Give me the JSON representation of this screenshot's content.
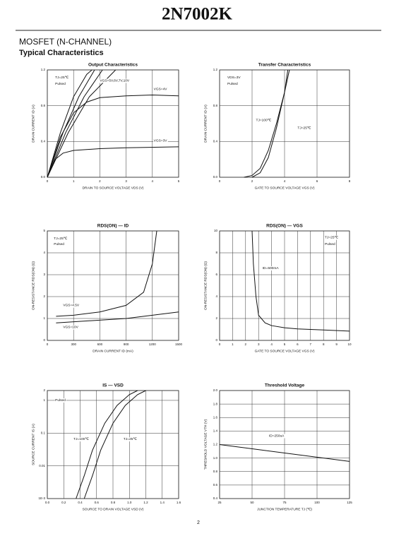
{
  "header": {
    "title": "2N7002K",
    "section": "MOSFET (N-CHANNEL)",
    "subtitle": "Typical Characteristics"
  },
  "page_number": "2",
  "chart_data": [
    {
      "type": "line",
      "title": "Output Characteristics",
      "xlabel": "DRAIN TO SOURCE VOLTAGE  VDS  (V)",
      "ylabel": "DRAIN CURRENT  ID  (A)",
      "xlim": [
        0,
        5
      ],
      "xticks": [
        0,
        1,
        2,
        3,
        4,
        5
      ],
      "ylim": [
        0,
        1.2
      ],
      "yticks": [
        {
          "value": 0,
          "label": "0.0"
        },
        0.4,
        0.8,
        1.2
      ],
      "grid": true,
      "ylog": false,
      "annotations": [
        "TJ=25℃",
        "Pulsed",
        "VGS=5V,6V,7V,10V",
        "VGS=4V",
        "VGS=3V"
      ],
      "series": [
        {
          "name": "VGS=10V",
          "color": "#111111",
          "x": [
            0,
            0.5,
            1,
            1.5,
            1.7
          ],
          "values": [
            0,
            0.5,
            0.9,
            1.15,
            1.2
          ]
        },
        {
          "name": "VGS=7V",
          "color": "#111111",
          "x": [
            0,
            0.6,
            1.2,
            1.8
          ],
          "values": [
            0,
            0.5,
            0.9,
            1.2
          ]
        },
        {
          "name": "VGS=6V",
          "color": "#111111",
          "x": [
            0,
            0.7,
            1.4,
            2.1
          ],
          "values": [
            0,
            0.5,
            0.9,
            1.2
          ]
        },
        {
          "name": "VGS=5V",
          "color": "#111111",
          "x": [
            0,
            0.8,
            1.6,
            2.6
          ],
          "values": [
            0,
            0.5,
            0.9,
            1.2
          ]
        },
        {
          "name": "VGS=4V",
          "color": "#111111",
          "x": [
            0,
            0.5,
            1,
            1.5,
            2,
            3,
            4,
            5
          ],
          "values": [
            0,
            0.45,
            0.72,
            0.84,
            0.89,
            0.91,
            0.92,
            0.91
          ]
        },
        {
          "name": "VGS=3V",
          "color": "#111111",
          "x": [
            0,
            0.3,
            0.6,
            1,
            2,
            3,
            5
          ],
          "values": [
            0,
            0.2,
            0.27,
            0.3,
            0.32,
            0.33,
            0.34
          ]
        }
      ]
    },
    {
      "type": "line",
      "title": "Transfer Characteristics",
      "xlabel": "GATE TO SOURCE VOLTAGE  VGS  (V)",
      "ylabel": "DRAIN CURRENT  ID  (A)",
      "xlim": [
        0,
        8
      ],
      "xticks": [
        0,
        2,
        4,
        6,
        8
      ],
      "ylim": [
        0,
        1.2
      ],
      "yticks": [
        {
          "value": 0,
          "label": "0.0"
        },
        0.4,
        0.8,
        1.2
      ],
      "grid": true,
      "ylog": false,
      "annotations": [
        "VDS=3V",
        "Pulsed",
        "TJ=100℃",
        "TJ=25℃"
      ],
      "series": [
        {
          "name": "TJ=100℃",
          "color": "#111111",
          "x": [
            1.5,
            2,
            2.5,
            3,
            3.5,
            4,
            4.3
          ],
          "values": [
            0,
            0.02,
            0.1,
            0.3,
            0.6,
            0.95,
            1.2
          ]
        },
        {
          "name": "TJ=25℃",
          "color": "#111111",
          "x": [
            2,
            2.5,
            3,
            3.5,
            4,
            4.2
          ],
          "values": [
            0,
            0.05,
            0.22,
            0.55,
            0.95,
            1.2
          ]
        }
      ]
    },
    {
      "type": "line",
      "title": "RDS(ON) — ID",
      "xlabel": "DRAIN CURRENT  ID  (mA)",
      "ylabel": "ON-RESISTANCE  RDS(ON)  (Ω)",
      "xlim": [
        0,
        1500
      ],
      "xticks": [
        0,
        300,
        600,
        900,
        1200,
        1500
      ],
      "ylim": [
        0,
        5
      ],
      "yticks": [
        0,
        1,
        2,
        3,
        4,
        5
      ],
      "grid": true,
      "ylog": false,
      "annotations": [
        "TJ=25℃",
        "Pulsed",
        "VGS=4.5V",
        "VGS=10V"
      ],
      "series": [
        {
          "name": "VGS=4.5V",
          "color": "#111111",
          "x": [
            100,
            300,
            600,
            900,
            1100,
            1200,
            1250
          ],
          "values": [
            1.1,
            1.15,
            1.3,
            1.6,
            2.2,
            3.5,
            5
          ]
        },
        {
          "name": "VGS=10V",
          "color": "#111111",
          "x": [
            100,
            500,
            900,
            1200,
            1500
          ],
          "values": [
            0.8,
            0.9,
            1,
            1.15,
            1.3
          ]
        }
      ]
    },
    {
      "type": "line",
      "title": "RDS(ON) — VGS",
      "xlabel": "GATE TO SOURCE VOLTAGE  VGS  (V)",
      "ylabel": "ON-RESISTANCE  RDS(ON)  (Ω)",
      "xlim": [
        0,
        10
      ],
      "xticks": [
        0,
        1,
        2,
        3,
        4,
        5,
        6,
        7,
        8,
        9,
        10
      ],
      "ylim": [
        0,
        10
      ],
      "yticks": [
        0,
        2,
        4,
        6,
        8,
        10
      ],
      "grid": true,
      "ylog": false,
      "annotations": [
        "TJ=25℃",
        "Pulsed",
        "ID=500mA"
      ],
      "series": [
        {
          "name": "ID=500mA",
          "color": "#111111",
          "x": [
            2.5,
            2.6,
            2.8,
            3,
            3.5,
            4,
            5,
            6,
            8,
            10
          ],
          "values": [
            10,
            7,
            4,
            2.3,
            1.6,
            1.35,
            1.15,
            1.05,
            0.95,
            0.85
          ]
        }
      ]
    },
    {
      "type": "line",
      "title": "IS — VSD",
      "xlabel": "SOURCE TO DRAIN VOLTAGE  VSD  (V)",
      "ylabel": "SOURCE CURRENT  IS  (A)",
      "xlim": [
        0,
        1.6
      ],
      "xticks": [
        {
          "value": 0,
          "label": "0.0"
        },
        0.2,
        0.4,
        0.6,
        0.8,
        {
          "value": 1,
          "label": "1.0"
        },
        1.2,
        1.4,
        1.6
      ],
      "ylim": [
        0.001,
        2
      ],
      "yticks": [
        {
          "value": 0.001,
          "label": "1E-3"
        },
        0.01,
        0.1,
        1,
        2
      ],
      "grid": true,
      "ylog": true,
      "annotations": [
        "Pulsed",
        "TJ=100℃",
        "TJ=25℃"
      ],
      "series": [
        {
          "name": "TJ=100℃",
          "color": "#111111",
          "x": [
            0.35,
            0.45,
            0.55,
            0.7,
            0.85,
            1,
            1.1
          ],
          "values": [
            0.001,
            0.005,
            0.03,
            0.2,
            0.7,
            1.5,
            2
          ]
        },
        {
          "name": "TJ=25℃",
          "color": "#111111",
          "x": [
            0.45,
            0.55,
            0.65,
            0.8,
            0.95,
            1.1,
            1.2
          ],
          "values": [
            0.001,
            0.005,
            0.03,
            0.2,
            0.7,
            1.5,
            2
          ]
        }
      ]
    },
    {
      "type": "line",
      "title": "Threshold Voltage",
      "xlabel": "JUNCTION TEMPERATURE  TJ  (℃)",
      "ylabel": "THRESHOLD VOLTAGE  VTH  (V)",
      "xlim": [
        25,
        125
      ],
      "xticks": [
        25,
        50,
        75,
        100,
        125
      ],
      "ylim": [
        0.4,
        2
      ],
      "yticks": [
        0.4,
        0.6,
        0.8,
        {
          "value": 1,
          "label": "1.0"
        },
        1.2,
        1.4,
        1.6,
        1.8,
        {
          "value": 2,
          "label": "2.0"
        }
      ],
      "grid": true,
      "ylog": false,
      "annotations": [
        "ID=250uA"
      ],
      "series": [
        {
          "name": "ID=250uA",
          "color": "#111111",
          "x": [
            25,
            125
          ],
          "values": [
            1.2,
            0.95
          ]
        }
      ]
    }
  ]
}
